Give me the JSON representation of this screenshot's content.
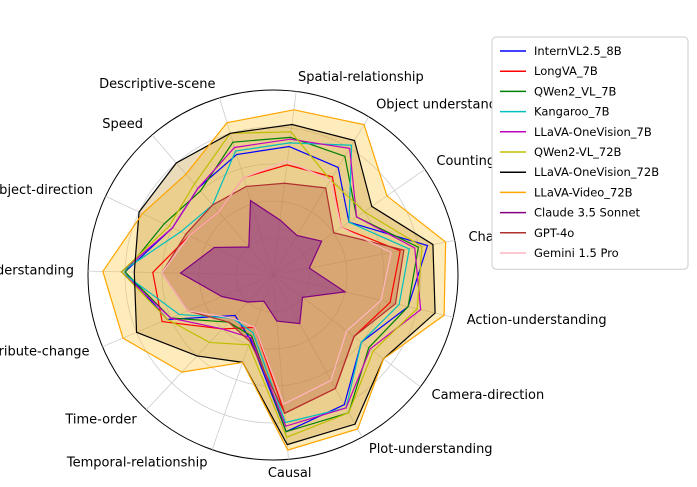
{
  "chart_data": {
    "type": "radar",
    "axes": [
      "Spatial-relationship",
      "Object understanding",
      "Counting",
      "Character-understanding",
      "Action-understanding",
      "Camera-direction",
      "Plot-understanding",
      "Causal",
      "Temporal-relationship",
      "Time-order",
      "Attribute-change",
      "Scene-understanding",
      "Object-direction",
      "Speed",
      "Descriptive-scene"
    ],
    "range": [
      0,
      1
    ],
    "grid": true,
    "legend_position": "top-right",
    "series": [
      {
        "name": "InternVL2.5_8B",
        "color": "#0000ff",
        "fill": false,
        "values": [
          0.7,
          0.68,
          0.5,
          0.85,
          0.75,
          0.6,
          0.8,
          0.85,
          0.37,
          0.3,
          0.62,
          0.8,
          0.6,
          0.62,
          0.68
        ]
      },
      {
        "name": "LongVA_7B",
        "color": "#ff0000",
        "fill": false,
        "values": [
          0.6,
          0.62,
          0.45,
          0.7,
          0.65,
          0.55,
          0.7,
          0.75,
          0.3,
          0.4,
          0.65,
          0.65,
          0.5,
          0.45,
          0.55
        ]
      },
      {
        "name": "QWen2_VL_7B",
        "color": "#008000",
        "fill": false,
        "values": [
          0.75,
          0.75,
          0.55,
          0.8,
          0.75,
          0.65,
          0.85,
          0.85,
          0.35,
          0.35,
          0.6,
          0.8,
          0.65,
          0.6,
          0.75
        ]
      },
      {
        "name": "Kangaroo_7B",
        "color": "#00bfbf",
        "fill": false,
        "values": [
          0.72,
          0.82,
          0.5,
          0.75,
          0.7,
          0.6,
          0.82,
          0.8,
          0.33,
          0.32,
          0.55,
          0.82,
          0.55,
          0.5,
          0.7
        ]
      },
      {
        "name": "LLaVA-OneVision_7B",
        "color": "#bf00bf",
        "fill": false,
        "values": [
          0.74,
          0.8,
          0.55,
          0.78,
          0.82,
          0.66,
          0.82,
          0.82,
          0.36,
          0.4,
          0.6,
          0.82,
          0.6,
          0.62,
          0.72
        ]
      },
      {
        "name": "QWen2-VL_72B",
        "color": "#bfbf00",
        "fill": false,
        "values": [
          0.78,
          0.6,
          0.6,
          0.82,
          0.8,
          0.68,
          0.85,
          0.88,
          0.4,
          0.5,
          0.62,
          0.82,
          0.62,
          0.65,
          0.8
        ]
      },
      {
        "name": "LLaVA-OneVision_72B",
        "color": "#000000",
        "fill": "#c49a3c",
        "values": [
          0.82,
          0.85,
          0.65,
          0.88,
          0.9,
          0.75,
          0.92,
          0.92,
          0.5,
          0.6,
          0.8,
          0.75,
          0.8,
          0.8,
          0.8
        ]
      },
      {
        "name": "LLaVA-Video_72B",
        "color": "#ffa500",
        "fill": "#ffc840",
        "values": [
          0.9,
          0.95,
          0.75,
          0.95,
          0.95,
          0.75,
          0.95,
          0.95,
          0.5,
          0.72,
          0.88,
          0.92,
          0.78,
          0.72,
          0.86
        ]
      },
      {
        "name": "Claude 3.5 Sonnet",
        "color": "#800080",
        "fill": "#8a2b8a",
        "values": [
          0.3,
          0.25,
          0.32,
          0.2,
          0.4,
          0.2,
          0.3,
          0.25,
          0.15,
          0.2,
          0.3,
          0.5,
          0.35,
          0.2,
          0.42
        ]
      },
      {
        "name": "GPT-4o",
        "color": "#b03030",
        "fill": "#b85a3c",
        "values": [
          0.5,
          0.55,
          0.4,
          0.72,
          0.68,
          0.55,
          0.7,
          0.75,
          0.38,
          0.35,
          0.5,
          0.6,
          0.52,
          0.5,
          0.5
        ]
      },
      {
        "name": "Gemini 1.5 Pro",
        "color": "#ffb6c1",
        "fill": false,
        "values": [
          0.62,
          0.6,
          0.45,
          0.65,
          0.6,
          0.5,
          0.65,
          0.7,
          0.3,
          0.32,
          0.5,
          0.6,
          0.5,
          0.45,
          0.55
        ]
      }
    ]
  }
}
